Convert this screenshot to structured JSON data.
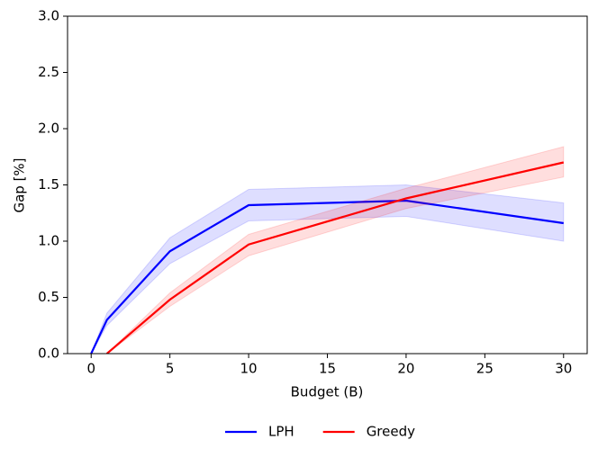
{
  "chart_data": {
    "type": "line",
    "xlabel": "Budget (B)",
    "ylabel": "Gap [%]",
    "xlim": [
      -1.5,
      31.5
    ],
    "xticks": [
      0,
      5,
      10,
      15,
      20,
      25,
      30
    ],
    "ylim": [
      0,
      3
    ],
    "yticks": [
      {
        "value": 0,
        "label": "0.0"
      },
      0.5,
      {
        "value": 1,
        "label": "1.0"
      },
      1.5,
      {
        "value": 2,
        "label": "2.0"
      },
      2.5,
      {
        "value": 3,
        "label": "3.0"
      }
    ],
    "legend": "bottom",
    "series": [
      {
        "name": "LPH",
        "color": "#0000ff",
        "x": [
          0,
          1,
          5,
          10,
          20,
          30
        ],
        "values": [
          0,
          0.3,
          0.91,
          1.32,
          1.36,
          1.16
        ],
        "lower": [
          0,
          0.25,
          0.8,
          1.18,
          1.22,
          1.0
        ],
        "upper": [
          0,
          0.36,
          1.03,
          1.46,
          1.5,
          1.34
        ]
      },
      {
        "name": "Greedy",
        "color": "#ff0000",
        "x": [
          1,
          5,
          10,
          20,
          30
        ],
        "values": [
          0,
          0.48,
          0.97,
          1.38,
          1.7
        ],
        "lower": [
          0,
          0.42,
          0.87,
          1.29,
          1.57
        ],
        "upper": [
          0,
          0.54,
          1.06,
          1.47,
          1.84
        ]
      }
    ]
  }
}
